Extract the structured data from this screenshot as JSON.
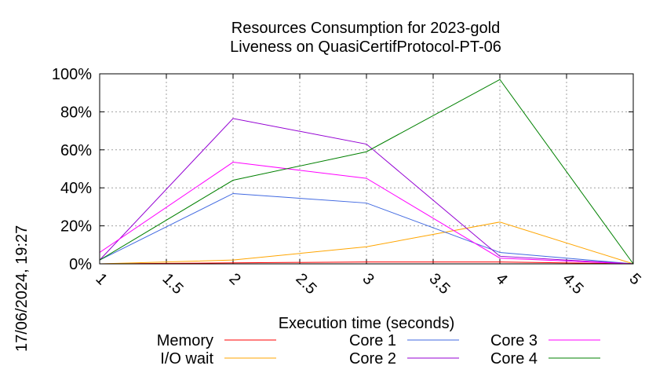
{
  "chart_data": {
    "type": "line",
    "title_line1": "Resources Consumption for 2023-gold",
    "title_line2": "Liveness on QuasiCertifProtocol-PT-06",
    "xlabel": "Execution time (seconds)",
    "ylabel": "",
    "xlim": [
      1,
      5
    ],
    "ylim": [
      0,
      100
    ],
    "x_ticks": [
      "1",
      "1.5",
      "2",
      "2.5",
      "3",
      "3.5",
      "4",
      "4.5",
      "5"
    ],
    "x_tick_values": [
      1,
      1.5,
      2,
      2.5,
      3,
      3.5,
      4,
      4.5,
      5
    ],
    "y_ticks": [
      "0%",
      "20%",
      "40%",
      "60%",
      "80%",
      "100%"
    ],
    "y_tick_values": [
      0,
      20,
      40,
      60,
      80,
      100
    ],
    "grid": true,
    "legend_position": "bottom",
    "x": [
      1,
      2,
      3,
      4,
      5
    ],
    "series": [
      {
        "name": "Memory",
        "color": "#ff0000",
        "values": [
          0,
          0.5,
          1,
          1,
          0
        ]
      },
      {
        "name": "I/O wait",
        "color": "#ffa500",
        "values": [
          0,
          2,
          9,
          22,
          0
        ]
      },
      {
        "name": "Core 1",
        "color": "#4169e1",
        "values": [
          2,
          37,
          32,
          6,
          0
        ]
      },
      {
        "name": "Core 2",
        "color": "#9400d3",
        "values": [
          2,
          76.5,
          63,
          4,
          0
        ]
      },
      {
        "name": "Core 3",
        "color": "#ff00ff",
        "values": [
          6,
          53.5,
          45,
          3,
          0
        ]
      },
      {
        "name": "Core 4",
        "color": "#008000",
        "values": [
          2,
          44,
          59,
          97,
          0
        ]
      }
    ]
  },
  "timestamp": "17/06/2024, 19:27"
}
